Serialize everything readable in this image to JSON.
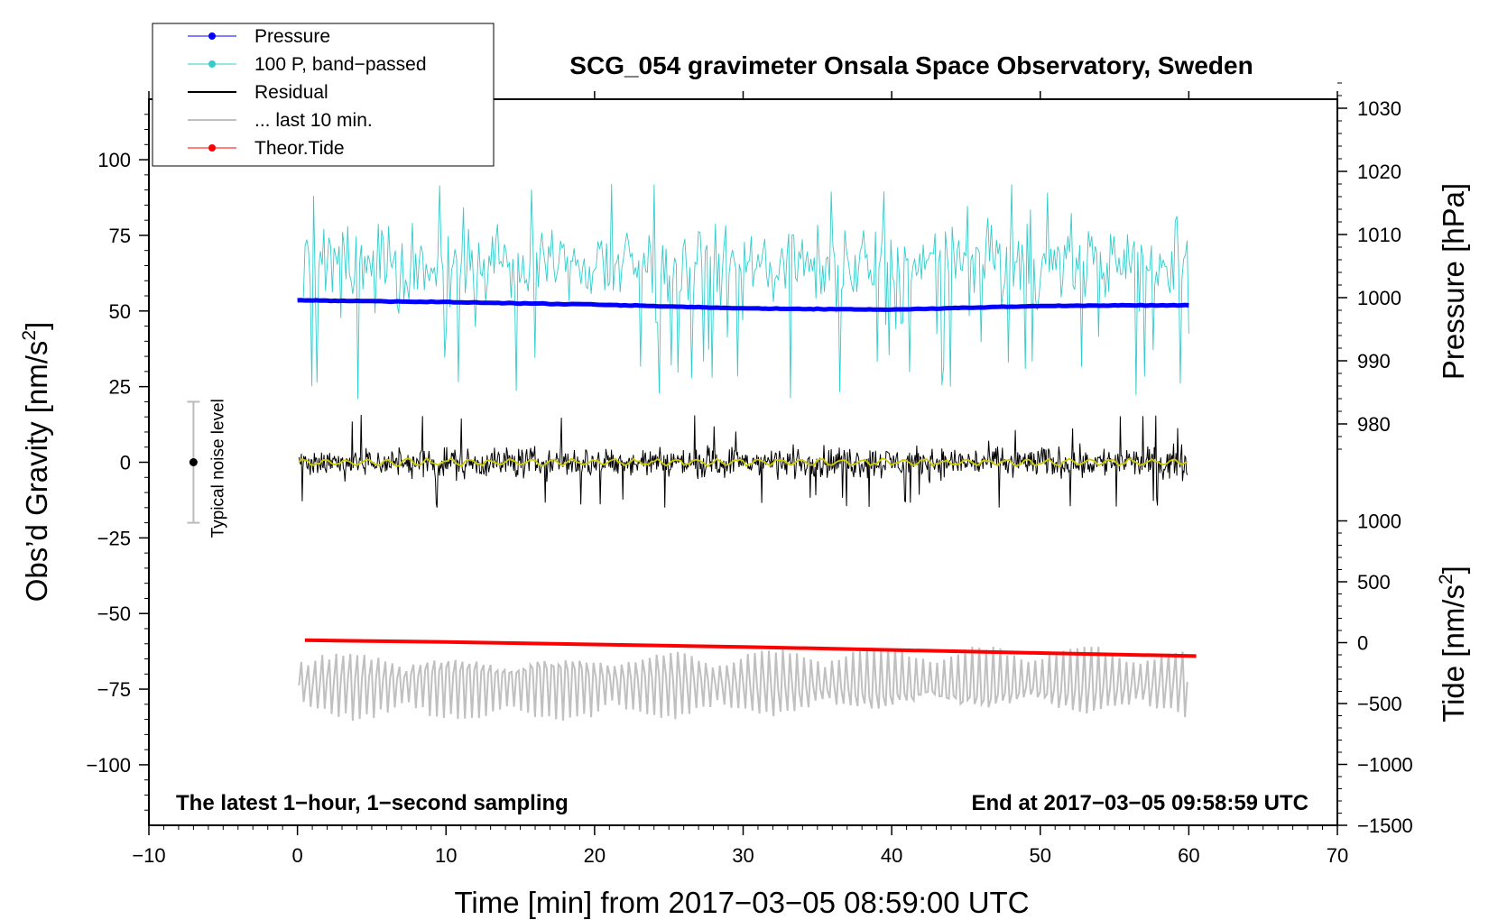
{
  "chart_data": {
    "type": "line",
    "title": "SCG_054 gravimeter Onsala Space Observatory, Sweden",
    "xlabel": "Time [min] from 2017−03−05 08:59:00 UTC",
    "ylabel_left_prefix": "Obs’d Gravity [nm/s",
    "ylabel_left_sup": "2",
    "ylabel_left_suffix": "]",
    "ylabel_right_top": "Pressure [hPa]",
    "ylabel_right_bottom_prefix": "Tide [nm/s",
    "ylabel_right_bottom_sup": "2",
    "ylabel_right_bottom_suffix": "]",
    "xlim": [
      -10,
      70
    ],
    "ylim": [
      -120,
      120
    ],
    "pressure_axis": {
      "range": [
        975,
        1035
      ],
      "ticks": [
        980,
        990,
        1000,
        1010,
        1020,
        1030
      ]
    },
    "tide_axis": {
      "range": [
        -1500,
        1500
      ],
      "ticks": [
        -1500,
        -1000,
        -500,
        0,
        500,
        1000
      ]
    },
    "x_ticks": [
      -10,
      0,
      10,
      20,
      30,
      40,
      50,
      60,
      70
    ],
    "x_tick_labels": [
      "−10",
      "0",
      "10",
      "20",
      "30",
      "40",
      "50",
      "60",
      "70"
    ],
    "y_ticks": [
      -100,
      -75,
      -50,
      -25,
      0,
      25,
      50,
      75,
      100
    ],
    "y_tick_labels": [
      "−100",
      "−75",
      "−50",
      "−25",
      "0",
      "25",
      "50",
      "75",
      "100"
    ],
    "pressure_tick_labels": [
      "980",
      "990",
      "1000",
      "1010",
      "1020",
      "1030"
    ],
    "tide_tick_labels": [
      "−1500",
      "−1000",
      "−500",
      "0",
      "500",
      "1000"
    ],
    "annotations": {
      "bottom_left": "The latest 1−hour, 1−second sampling",
      "bottom_right": "End at 2017−03−05 09:58:59 UTC",
      "noise_label": "Typical noise level"
    },
    "noise_bar": {
      "x": -7,
      "center": 0,
      "half_range": 20
    },
    "legend": [
      {
        "label": "Pressure",
        "color": "#0000ff",
        "marker": true,
        "width": 1
      },
      {
        "label": "100 P, band−passed",
        "color": "#33cccc",
        "marker": true,
        "width": 1
      },
      {
        "label": "Residual",
        "color": "#000000",
        "marker": false,
        "width": 2
      },
      {
        "label": "... last 10 min.",
        "color": "#c0c0c0",
        "marker": false,
        "width": 2
      },
      {
        "label": "Theor.Tide",
        "color": "#ff0000",
        "marker": true,
        "width": 1
      }
    ],
    "series": [
      {
        "name": "Pressure",
        "axis": "pressure",
        "color": "#0000ff",
        "x": [
          0,
          10,
          20,
          30,
          40,
          50,
          60
        ],
        "values": [
          999.6,
          999.3,
          998.9,
          998.3,
          998.1,
          998.7,
          998.8
        ]
      },
      {
        "name": "100 P, band−passed",
        "axis": "gravity",
        "color": "#33cccc",
        "center": 65,
        "amplitude": 20,
        "spike_min": 17,
        "spike_max": 92
      },
      {
        "name": "Residual",
        "axis": "gravity",
        "color": "#000000",
        "center": 0,
        "amplitude": 10,
        "min": -15,
        "max": 18
      },
      {
        "name": "Residual smoothed",
        "axis": "gravity",
        "color": "#cccc00",
        "center": 0,
        "amplitude": 1.5
      },
      {
        "name": "... last 10 min.",
        "axis": "gravity",
        "color": "#c0c0c0",
        "center": -73,
        "amplitude": 12,
        "min": -90,
        "max": -61
      },
      {
        "name": "Theor.Tide",
        "axis": "tide",
        "color": "#ff0000",
        "x": [
          0.5,
          10,
          20,
          30,
          40,
          50,
          60.5
        ],
        "values": [
          20,
          5,
          -15,
          -35,
          -60,
          -85,
          -110
        ]
      }
    ]
  }
}
